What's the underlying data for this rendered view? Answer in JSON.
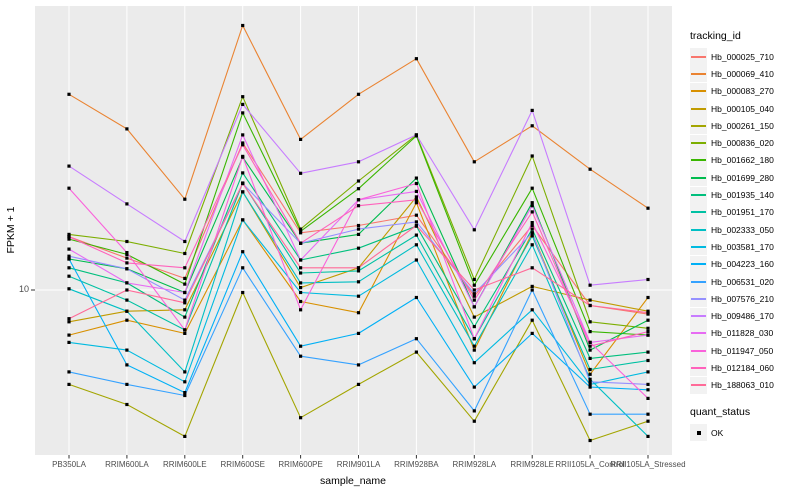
{
  "figure": {
    "background": "#FFFFFF",
    "panel_background": "#EBEBEB",
    "grid_color": "#FFFFFF",
    "tick_color": "#333333",
    "marker_color": "#000000"
  },
  "y_axis": {
    "title": "FPKM + 1",
    "tick_label": "10"
  },
  "x_axis": {
    "title": "sample_name"
  },
  "legend": {
    "tracking_title": "tracking_id",
    "quant_title": "quant_status",
    "quant_items": [
      {
        "label": "OK",
        "marker": "black-square"
      }
    ]
  },
  "chart_data": {
    "type": "line",
    "title": "",
    "xlabel": "sample_name",
    "ylabel": "FPKM + 1",
    "y_scale": "log10",
    "ylim": [
      2.6,
      103
    ],
    "y_ticks": [
      10
    ],
    "grid": "major",
    "legend_position": "right",
    "marker": "filled-black-square (quant_status = OK)",
    "categories": [
      "PB350LA",
      "RRIM600LA",
      "RRIM600LE",
      "RRIM600SE",
      "RRIM600PE",
      "RRIM901LA",
      "RRIM928BA",
      "RRIM928LA",
      "RRIM928LE",
      "RRII105LA_Control",
      "RRII105LA_Stressed"
    ],
    "series": [
      {
        "name": "Hb_000025_710",
        "color": "#F8766D",
        "values": [
          15.5,
          13.0,
          11.0,
          33.5,
          16.0,
          17.0,
          18.5,
          9.5,
          17.0,
          8.8,
          8.2
        ]
      },
      {
        "name": "Hb_000069_410",
        "color": "#EA8331",
        "values": [
          50.0,
          37.6,
          21.1,
          88.0,
          34.5,
          50.0,
          67.0,
          28.7,
          38.6,
          27.0,
          19.6
        ]
      },
      {
        "name": "Hb_000083_270",
        "color": "#D89000",
        "values": [
          6.9,
          7.8,
          7.0,
          17.8,
          9.1,
          8.3,
          20.5,
          6.1,
          16.0,
          5.0,
          9.4
        ]
      },
      {
        "name": "Hb_000105_040",
        "color": "#C09B00",
        "values": [
          7.7,
          8.4,
          8.5,
          22.4,
          10.2,
          12.0,
          21.5,
          8.0,
          10.3,
          9.2,
          8.4
        ]
      },
      {
        "name": "Hb_000261_150",
        "color": "#A3A500",
        "values": [
          4.6,
          3.9,
          3.0,
          9.8,
          3.5,
          4.6,
          6.0,
          3.4,
          7.8,
          2.9,
          3.4
        ]
      },
      {
        "name": "Hb_000836_020",
        "color": "#7CAE00",
        "values": [
          15.8,
          14.9,
          13.5,
          49.0,
          16.5,
          24.5,
          35.8,
          10.9,
          30.1,
          7.7,
          7.3
        ]
      },
      {
        "name": "Hb_001662_180",
        "color": "#39B600",
        "values": [
          15.2,
          13.4,
          10.5,
          42.9,
          16.2,
          23.0,
          35.5,
          10.4,
          23.1,
          7.1,
          6.9
        ]
      },
      {
        "name": "Hb_001699_280",
        "color": "#00BB4E",
        "values": [
          12.9,
          11.9,
          9.8,
          29.8,
          14.7,
          15.8,
          25.1,
          8.7,
          20.5,
          6.1,
          7.8
        ]
      },
      {
        "name": "Hb_001935_140",
        "color": "#00BF7D",
        "values": [
          12.0,
          10.6,
          8.0,
          26.2,
          12.8,
          14.1,
          16.9,
          7.4,
          16.5,
          5.7,
          6.0
        ]
      },
      {
        "name": "Hb_001951_170",
        "color": "#00C1A3",
        "values": [
          11.2,
          9.2,
          7.2,
          24.1,
          11.5,
          11.7,
          15.7,
          6.7,
          15.6,
          5.2,
          5.6
        ]
      },
      {
        "name": "Hb_002333_050",
        "color": "#00BFC4",
        "values": [
          10.1,
          8.4,
          5.1,
          22.4,
          10.6,
          10.7,
          14.5,
          6.3,
          14.5,
          4.8,
          3.0
        ]
      },
      {
        "name": "Hb_003581_170",
        "color": "#00BAE0",
        "values": [
          6.5,
          6.1,
          4.7,
          17.8,
          9.8,
          9.5,
          12.8,
          5.5,
          8.5,
          4.6,
          5.1
        ]
      },
      {
        "name": "Hb_004223_160",
        "color": "#00B0F6",
        "values": [
          12.9,
          5.4,
          4.3,
          13.7,
          6.3,
          7.0,
          9.4,
          4.5,
          7.0,
          4.5,
          4.4
        ]
      },
      {
        "name": "Hb_006531_020",
        "color": "#35A2FF",
        "values": [
          5.1,
          4.6,
          4.2,
          12.0,
          5.8,
          5.4,
          6.7,
          3.7,
          10.0,
          3.6,
          3.6
        ]
      },
      {
        "name": "Hb_007576_210",
        "color": "#9590FF",
        "values": [
          13.2,
          11.9,
          9.2,
          24.0,
          14.7,
          16.5,
          17.5,
          9.7,
          16.0,
          4.7,
          4.6
        ]
      },
      {
        "name": "Hb_009486_170",
        "color": "#C77CFF",
        "values": [
          27.7,
          20.3,
          14.9,
          46.0,
          26.1,
          28.7,
          35.8,
          16.4,
          43.8,
          10.4,
          10.9
        ]
      },
      {
        "name": "Hb_011828_030",
        "color": "#E76BF3",
        "values": [
          14.0,
          10.6,
          9.8,
          35.8,
          12.8,
          21.0,
          22.5,
          8.7,
          20.0,
          6.5,
          6.9
        ]
      },
      {
        "name": "Hb_011947_050",
        "color": "#FA62DB",
        "values": [
          23.1,
          13.6,
          7.2,
          30.0,
          8.5,
          21.0,
          24.0,
          6.7,
          17.4,
          6.5,
          4.1
        ]
      },
      {
        "name": "Hb_012184_060",
        "color": "#FF62BC",
        "values": [
          15.5,
          12.5,
          12.0,
          33.0,
          14.7,
          20.0,
          21.0,
          9.2,
          19.0,
          6.3,
          7.1
        ]
      },
      {
        "name": "Hb_188063_010",
        "color": "#FF6A98",
        "values": [
          7.9,
          10.0,
          9.0,
          24.0,
          12.0,
          12.0,
          17.0,
          10.0,
          12.0,
          8.8,
          8.3
        ]
      }
    ]
  }
}
